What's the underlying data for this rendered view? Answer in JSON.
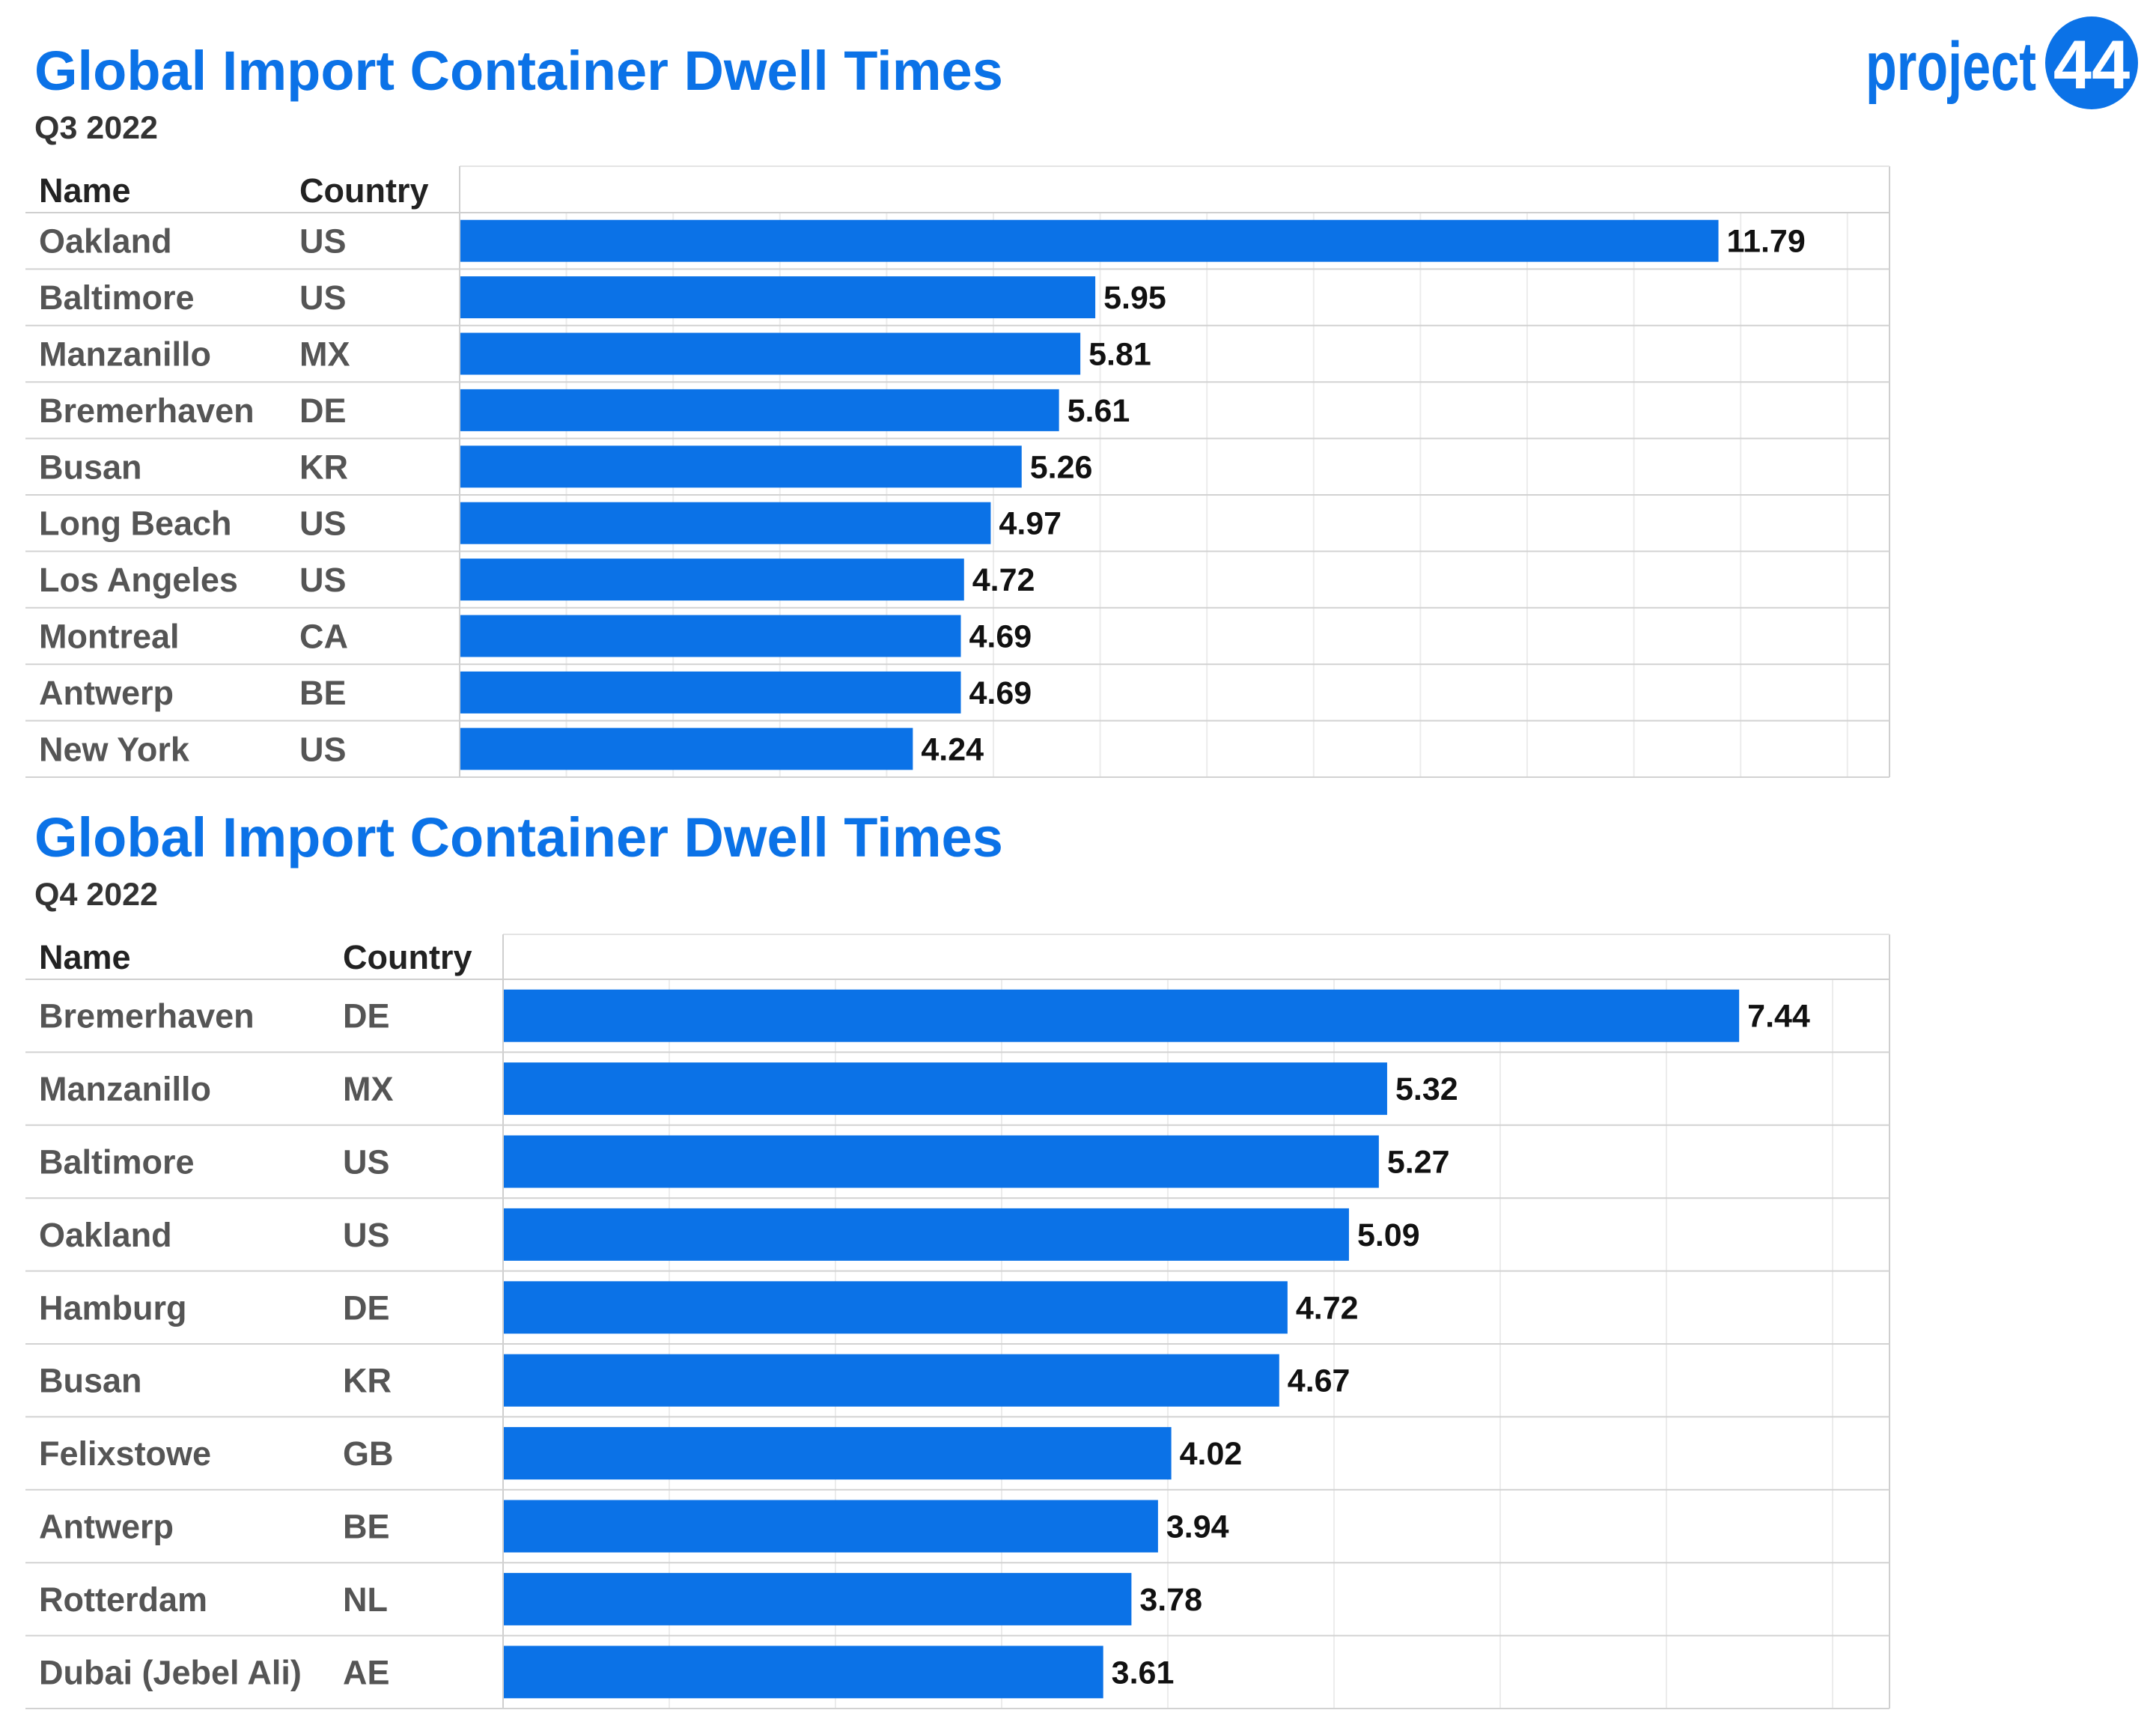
{
  "brand": {
    "logo_text": "project",
    "logo_number": "44",
    "accent": "#0b72e7"
  },
  "chart_data": [
    {
      "type": "bar",
      "title": "Global Import Container Dwell Times",
      "subtitle": "Q3 2022",
      "columns": [
        "Name",
        "Country"
      ],
      "categories": [
        "Oakland",
        "Baltimore",
        "Manzanillo",
        "Bremerhaven",
        "Busan",
        "Long Beach",
        "Los Angeles",
        "Montreal",
        "Antwerp",
        "New York"
      ],
      "countries": [
        "US",
        "US",
        "MX",
        "DE",
        "KR",
        "US",
        "US",
        "CA",
        "BE",
        "US"
      ],
      "values": [
        11.79,
        5.95,
        5.81,
        5.61,
        5.26,
        4.97,
        4.72,
        4.69,
        4.69,
        4.24
      ],
      "value_labels": [
        "11.79",
        "5.95",
        "5.81",
        "5.61",
        "5.26",
        "4.97",
        "4.72",
        "4.69",
        "4.69",
        "4.24"
      ],
      "xlim": [
        0,
        13.4
      ],
      "grid": true,
      "bar_color": "#0b72e7"
    },
    {
      "type": "bar",
      "title": "Global Import Container Dwell Times",
      "subtitle": "Q4 2022",
      "columns": [
        "Name",
        "Country"
      ],
      "categories": [
        "Bremerhaven",
        "Manzanillo",
        "Baltimore",
        "Oakland",
        "Hamburg",
        "Busan",
        "Felixstowe",
        "Antwerp",
        "Rotterdam",
        "Dubai (Jebel Ali)"
      ],
      "countries": [
        "DE",
        "MX",
        "US",
        "US",
        "DE",
        "KR",
        "GB",
        "BE",
        "NL",
        "AE"
      ],
      "values": [
        7.44,
        5.32,
        5.27,
        5.09,
        4.72,
        4.67,
        4.02,
        3.94,
        3.78,
        3.61
      ],
      "value_labels": [
        "7.44",
        "5.32",
        "5.27",
        "5.09",
        "4.72",
        "4.67",
        "4.02",
        "3.94",
        "3.78",
        "3.61"
      ],
      "xlim": [
        0,
        8.35
      ],
      "grid": true,
      "bar_color": "#0b72e7"
    }
  ]
}
